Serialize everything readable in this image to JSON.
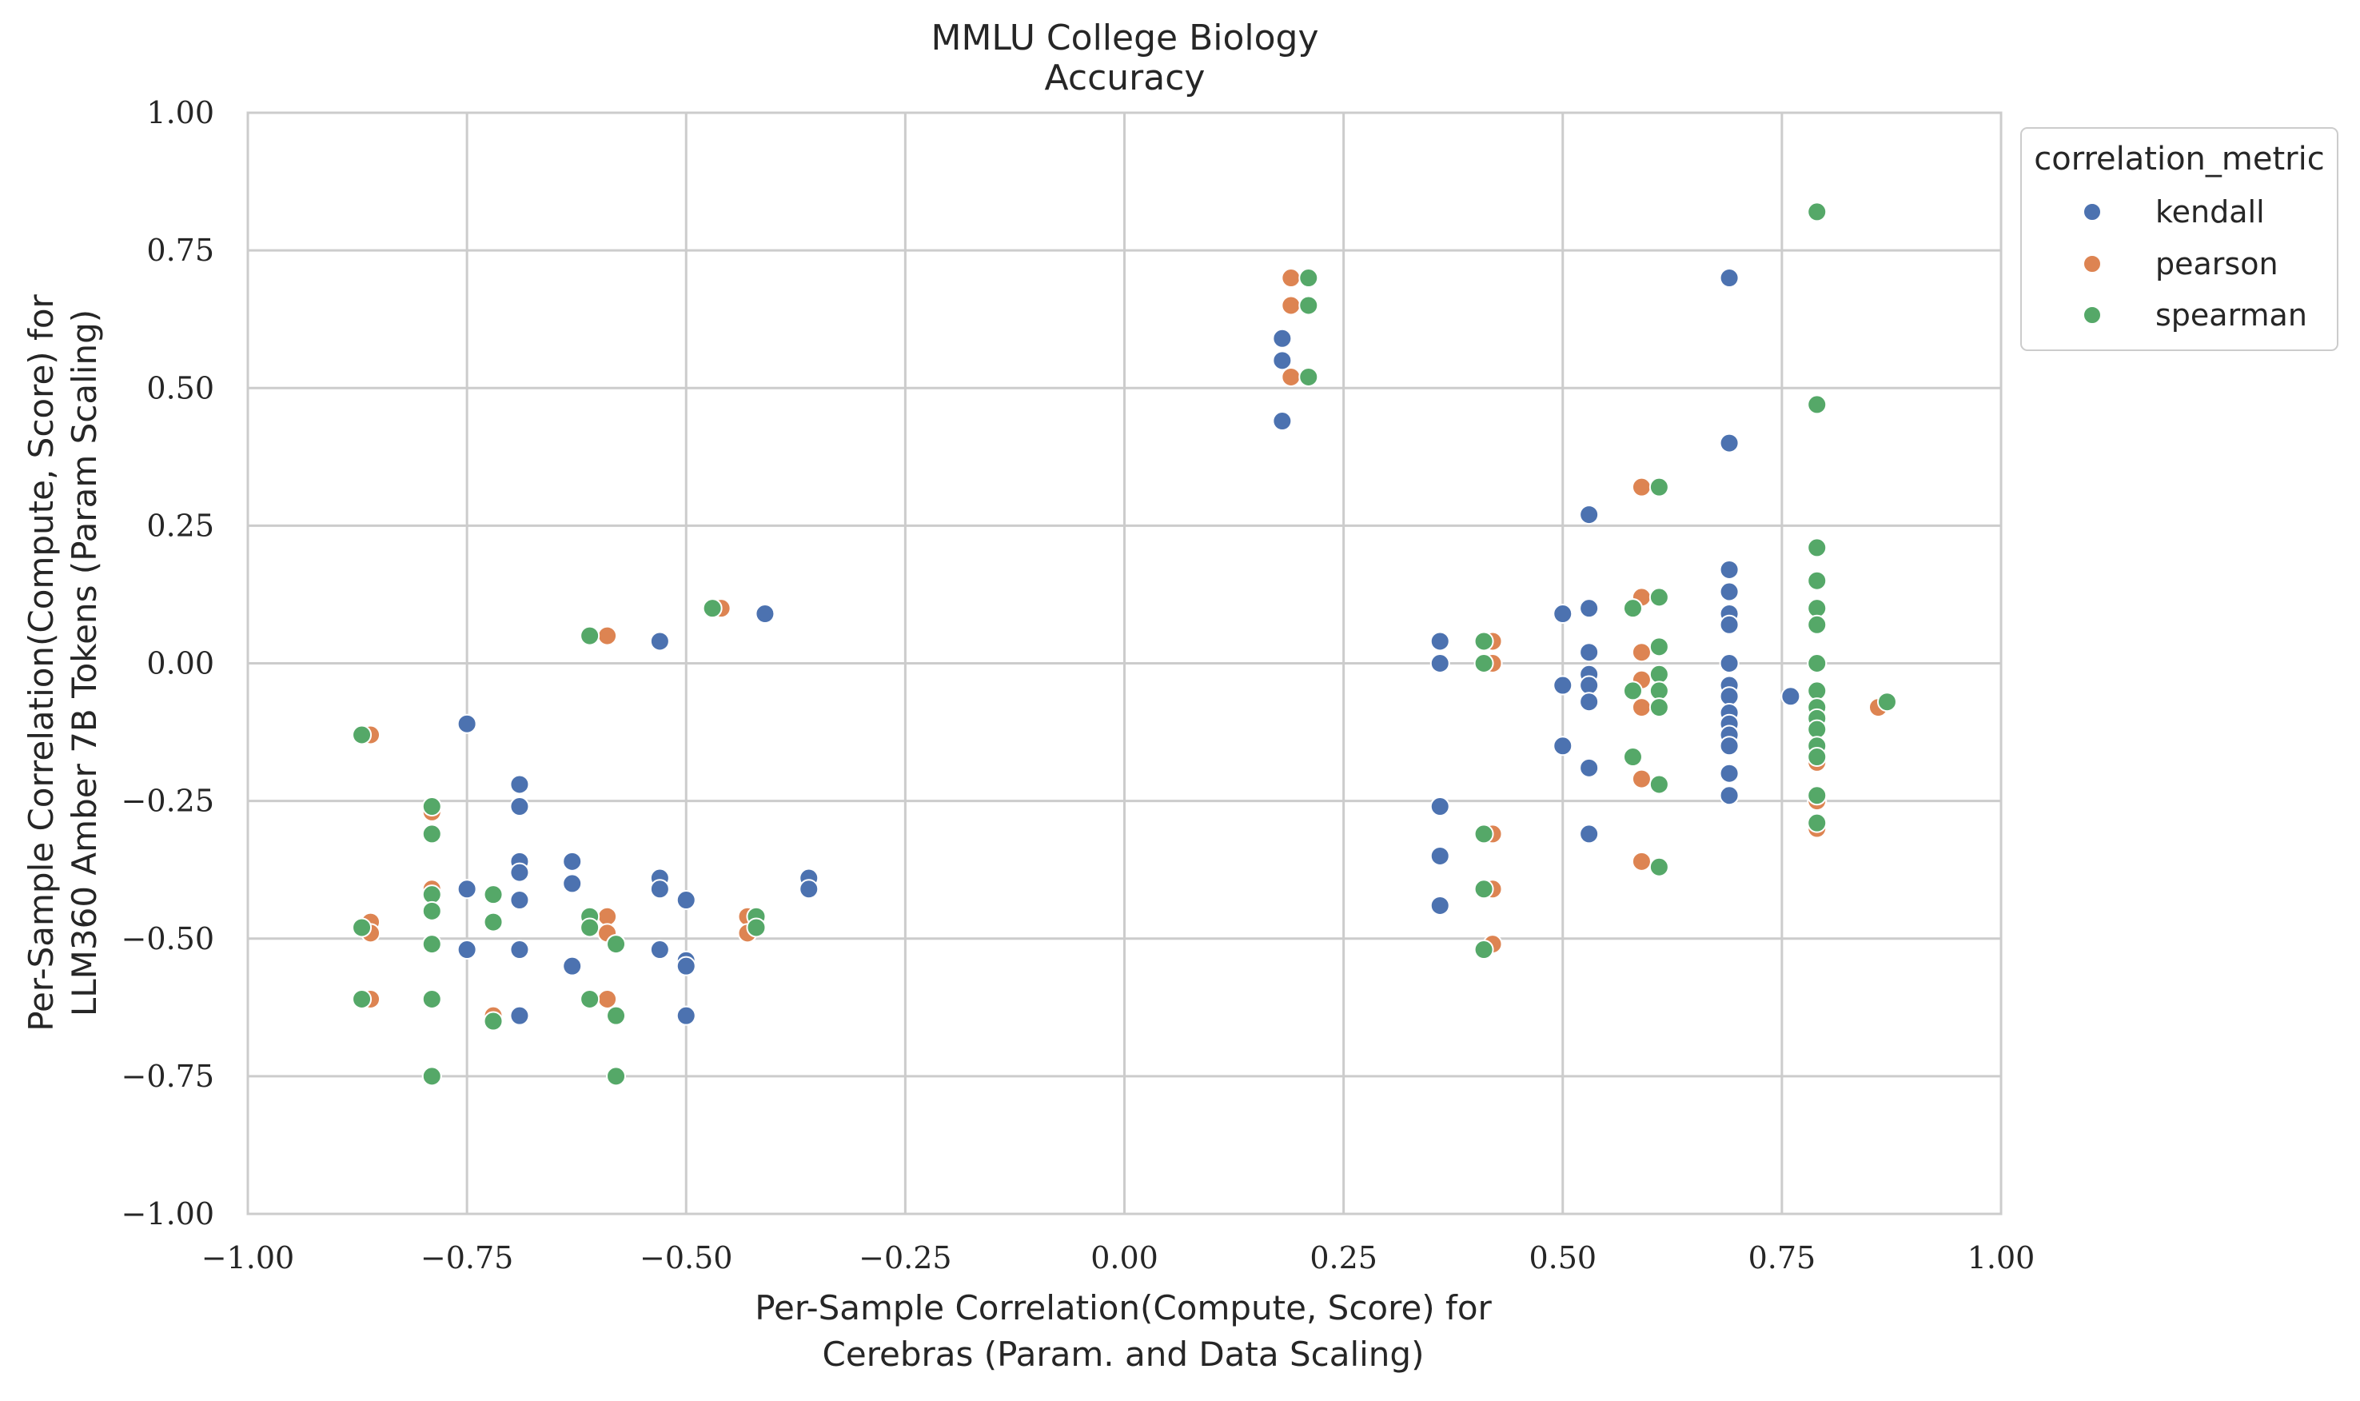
{
  "chart_data": {
    "type": "scatter",
    "title": [
      "MMLU College Biology",
      "Accuracy"
    ],
    "xlabel": [
      "Per-Sample Correlation(Compute, Score) for",
      "Cerebras (Param. and Data Scaling)"
    ],
    "ylabel": [
      "Per-Sample Correlation(Compute, Score) for",
      "LLM360 Amber 7B Tokens (Param Scaling)"
    ],
    "xlim": [
      -1.0,
      1.0
    ],
    "ylim": [
      -1.0,
      1.0
    ],
    "xticks": [
      "−1.00",
      "−0.75",
      "−0.50",
      "−0.25",
      "0.00",
      "0.25",
      "0.50",
      "0.75",
      "1.00"
    ],
    "yticks": [
      "−1.00",
      "−0.75",
      "−0.50",
      "−0.25",
      "0.00",
      "0.25",
      "0.50",
      "0.75",
      "1.00"
    ],
    "grid": true,
    "legend": {
      "title": "correlation_metric",
      "placement": "outside-upper-right"
    },
    "series": [
      {
        "name": "kendall",
        "color": "#4c72b0",
        "points": [
          [
            -0.75,
            -0.11
          ],
          [
            -0.75,
            -0.41
          ],
          [
            -0.75,
            -0.52
          ],
          [
            -0.69,
            -0.22
          ],
          [
            -0.69,
            -0.26
          ],
          [
            -0.69,
            -0.36
          ],
          [
            -0.69,
            -0.38
          ],
          [
            -0.69,
            -0.43
          ],
          [
            -0.69,
            -0.52
          ],
          [
            -0.69,
            -0.64
          ],
          [
            -0.63,
            -0.36
          ],
          [
            -0.63,
            -0.4
          ],
          [
            -0.63,
            -0.55
          ],
          [
            -0.53,
            0.04
          ],
          [
            -0.53,
            -0.39
          ],
          [
            -0.53,
            -0.41
          ],
          [
            -0.53,
            -0.52
          ],
          [
            -0.5,
            -0.43
          ],
          [
            -0.5,
            -0.54
          ],
          [
            -0.5,
            -0.55
          ],
          [
            -0.5,
            -0.64
          ],
          [
            -0.41,
            0.09
          ],
          [
            -0.36,
            -0.39
          ],
          [
            -0.36,
            -0.41
          ],
          [
            0.18,
            0.59
          ],
          [
            0.18,
            0.55
          ],
          [
            0.18,
            0.44
          ],
          [
            0.36,
            0.04
          ],
          [
            0.36,
            0.0
          ],
          [
            0.36,
            -0.26
          ],
          [
            0.36,
            -0.35
          ],
          [
            0.36,
            -0.44
          ],
          [
            0.5,
            0.09
          ],
          [
            0.5,
            -0.04
          ],
          [
            0.5,
            -0.15
          ],
          [
            0.53,
            0.27
          ],
          [
            0.53,
            0.1
          ],
          [
            0.53,
            0.02
          ],
          [
            0.53,
            -0.02
          ],
          [
            0.53,
            -0.04
          ],
          [
            0.53,
            -0.07
          ],
          [
            0.53,
            -0.19
          ],
          [
            0.53,
            -0.31
          ],
          [
            0.69,
            0.7
          ],
          [
            0.69,
            0.4
          ],
          [
            0.69,
            0.17
          ],
          [
            0.69,
            0.13
          ],
          [
            0.69,
            0.09
          ],
          [
            0.69,
            0.07
          ],
          [
            0.69,
            0.0
          ],
          [
            0.69,
            -0.04
          ],
          [
            0.69,
            -0.06
          ],
          [
            0.69,
            -0.09
          ],
          [
            0.69,
            -0.11
          ],
          [
            0.69,
            -0.13
          ],
          [
            0.69,
            -0.15
          ],
          [
            0.69,
            -0.2
          ],
          [
            0.69,
            -0.24
          ],
          [
            0.76,
            -0.06
          ]
        ]
      },
      {
        "name": "pearson",
        "color": "#dd8452",
        "points": [
          [
            -0.86,
            -0.13
          ],
          [
            -0.86,
            -0.47
          ],
          [
            -0.86,
            -0.49
          ],
          [
            -0.86,
            -0.61
          ],
          [
            -0.79,
            -0.27
          ],
          [
            -0.79,
            -0.41
          ],
          [
            -0.79,
            -0.51
          ],
          [
            -0.79,
            -0.61
          ],
          [
            -0.79,
            -0.75
          ],
          [
            -0.72,
            -0.47
          ],
          [
            -0.72,
            -0.64
          ],
          [
            -0.59,
            0.05
          ],
          [
            -0.59,
            -0.46
          ],
          [
            -0.59,
            -0.49
          ],
          [
            -0.59,
            -0.61
          ],
          [
            -0.58,
            -0.64
          ],
          [
            -0.58,
            -0.75
          ],
          [
            -0.58,
            -0.51
          ],
          [
            -0.46,
            0.1
          ],
          [
            -0.43,
            -0.46
          ],
          [
            -0.43,
            -0.49
          ],
          [
            0.19,
            0.7
          ],
          [
            0.19,
            0.65
          ],
          [
            0.19,
            0.52
          ],
          [
            0.42,
            0.04
          ],
          [
            0.42,
            0.0
          ],
          [
            0.42,
            -0.31
          ],
          [
            0.42,
            -0.41
          ],
          [
            0.42,
            -0.51
          ],
          [
            0.59,
            0.32
          ],
          [
            0.59,
            0.12
          ],
          [
            0.58,
            0.1
          ],
          [
            0.59,
            0.02
          ],
          [
            0.59,
            -0.03
          ],
          [
            0.59,
            -0.08
          ],
          [
            0.58,
            -0.17
          ],
          [
            0.59,
            -0.21
          ],
          [
            0.59,
            -0.36
          ],
          [
            0.79,
            0.47
          ],
          [
            0.79,
            0.0
          ],
          [
            0.79,
            -0.05
          ],
          [
            0.79,
            -0.12
          ],
          [
            0.79,
            -0.18
          ],
          [
            0.79,
            -0.25
          ],
          [
            0.79,
            -0.3
          ],
          [
            0.86,
            -0.08
          ]
        ]
      },
      {
        "name": "spearman",
        "color": "#55a868",
        "points": [
          [
            -0.87,
            -0.13
          ],
          [
            -0.87,
            -0.48
          ],
          [
            -0.87,
            -0.61
          ],
          [
            -0.79,
            -0.26
          ],
          [
            -0.79,
            -0.31
          ],
          [
            -0.79,
            -0.42
          ],
          [
            -0.79,
            -0.45
          ],
          [
            -0.79,
            -0.51
          ],
          [
            -0.79,
            -0.61
          ],
          [
            -0.79,
            -0.75
          ],
          [
            -0.72,
            -0.42
          ],
          [
            -0.72,
            -0.47
          ],
          [
            -0.72,
            -0.65
          ],
          [
            -0.61,
            0.05
          ],
          [
            -0.61,
            -0.46
          ],
          [
            -0.61,
            -0.48
          ],
          [
            -0.61,
            -0.61
          ],
          [
            -0.58,
            -0.51
          ],
          [
            -0.58,
            -0.64
          ],
          [
            -0.58,
            -0.75
          ],
          [
            -0.47,
            0.1
          ],
          [
            -0.42,
            -0.46
          ],
          [
            -0.42,
            -0.48
          ],
          [
            0.21,
            0.7
          ],
          [
            0.21,
            0.65
          ],
          [
            0.21,
            0.52
          ],
          [
            0.41,
            0.04
          ],
          [
            0.41,
            0.0
          ],
          [
            0.41,
            -0.31
          ],
          [
            0.41,
            -0.41
          ],
          [
            0.41,
            -0.52
          ],
          [
            0.58,
            0.1
          ],
          [
            0.58,
            -0.05
          ],
          [
            0.58,
            -0.17
          ],
          [
            0.61,
            0.32
          ],
          [
            0.61,
            0.12
          ],
          [
            0.61,
            0.03
          ],
          [
            0.61,
            -0.02
          ],
          [
            0.61,
            -0.05
          ],
          [
            0.61,
            -0.08
          ],
          [
            0.61,
            -0.22
          ],
          [
            0.61,
            -0.37
          ],
          [
            0.79,
            0.82
          ],
          [
            0.79,
            0.47
          ],
          [
            0.79,
            0.21
          ],
          [
            0.79,
            0.15
          ],
          [
            0.79,
            0.1
          ],
          [
            0.79,
            0.07
          ],
          [
            0.79,
            0.0
          ],
          [
            0.79,
            -0.05
          ],
          [
            0.79,
            -0.08
          ],
          [
            0.79,
            -0.1
          ],
          [
            0.79,
            -0.12
          ],
          [
            0.79,
            -0.15
          ],
          [
            0.79,
            -0.17
          ],
          [
            0.79,
            -0.24
          ],
          [
            0.79,
            -0.29
          ],
          [
            0.87,
            -0.07
          ]
        ]
      }
    ]
  }
}
